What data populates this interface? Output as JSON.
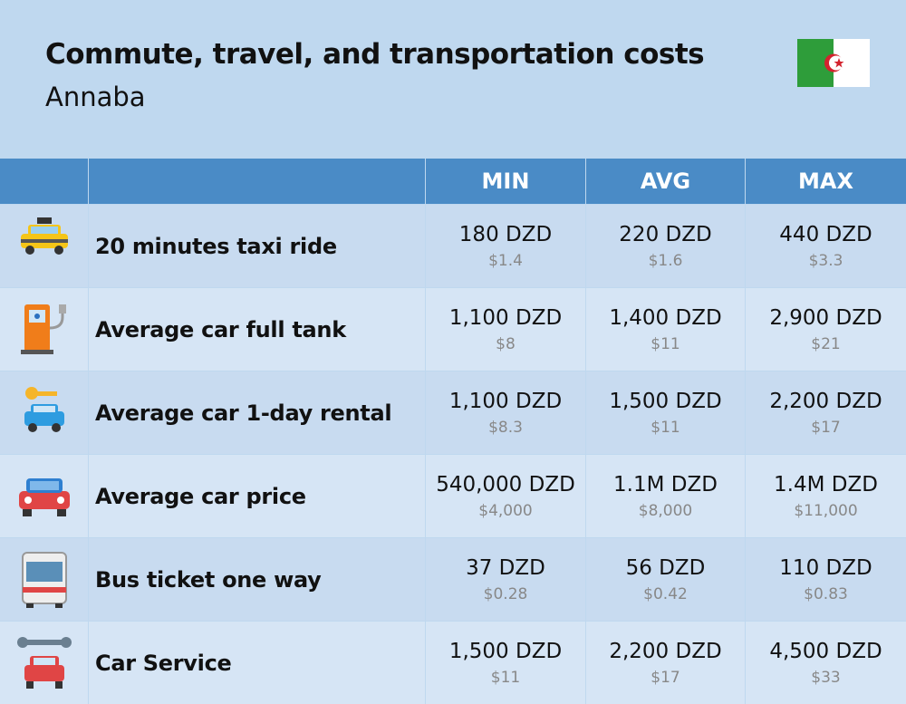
{
  "header": {
    "title": "Commute, travel, and transportation costs",
    "subtitle": "Annaba"
  },
  "table": {
    "columns": [
      "MIN",
      "AVG",
      "MAX"
    ],
    "rows": [
      {
        "label": "20 minutes taxi ride",
        "min": {
          "local": "180 DZD",
          "usd": "$1.4"
        },
        "avg": {
          "local": "220 DZD",
          "usd": "$1.6"
        },
        "max": {
          "local": "440 DZD",
          "usd": "$3.3"
        }
      },
      {
        "label": "Average car full tank",
        "min": {
          "local": "1,100 DZD",
          "usd": "$8"
        },
        "avg": {
          "local": "1,400 DZD",
          "usd": "$11"
        },
        "max": {
          "local": "2,900 DZD",
          "usd": "$21"
        }
      },
      {
        "label": "Average car 1-day rental",
        "min": {
          "local": "1,100 DZD",
          "usd": "$8.3"
        },
        "avg": {
          "local": "1,500 DZD",
          "usd": "$11"
        },
        "max": {
          "local": "2,200 DZD",
          "usd": "$17"
        }
      },
      {
        "label": "Average car price",
        "min": {
          "local": "540,000 DZD",
          "usd": "$4,000"
        },
        "avg": {
          "local": "1.1M DZD",
          "usd": "$8,000"
        },
        "max": {
          "local": "1.4M DZD",
          "usd": "$11,000"
        }
      },
      {
        "label": "Bus ticket one way",
        "min": {
          "local": "37 DZD",
          "usd": "$0.28"
        },
        "avg": {
          "local": "56 DZD",
          "usd": "$0.42"
        },
        "max": {
          "local": "110 DZD",
          "usd": "$0.83"
        }
      },
      {
        "label": "Car Service",
        "min": {
          "local": "1,500 DZD",
          "usd": "$11"
        },
        "avg": {
          "local": "2,200 DZD",
          "usd": "$17"
        },
        "max": {
          "local": "4,500 DZD",
          "usd": "$33"
        }
      }
    ]
  }
}
